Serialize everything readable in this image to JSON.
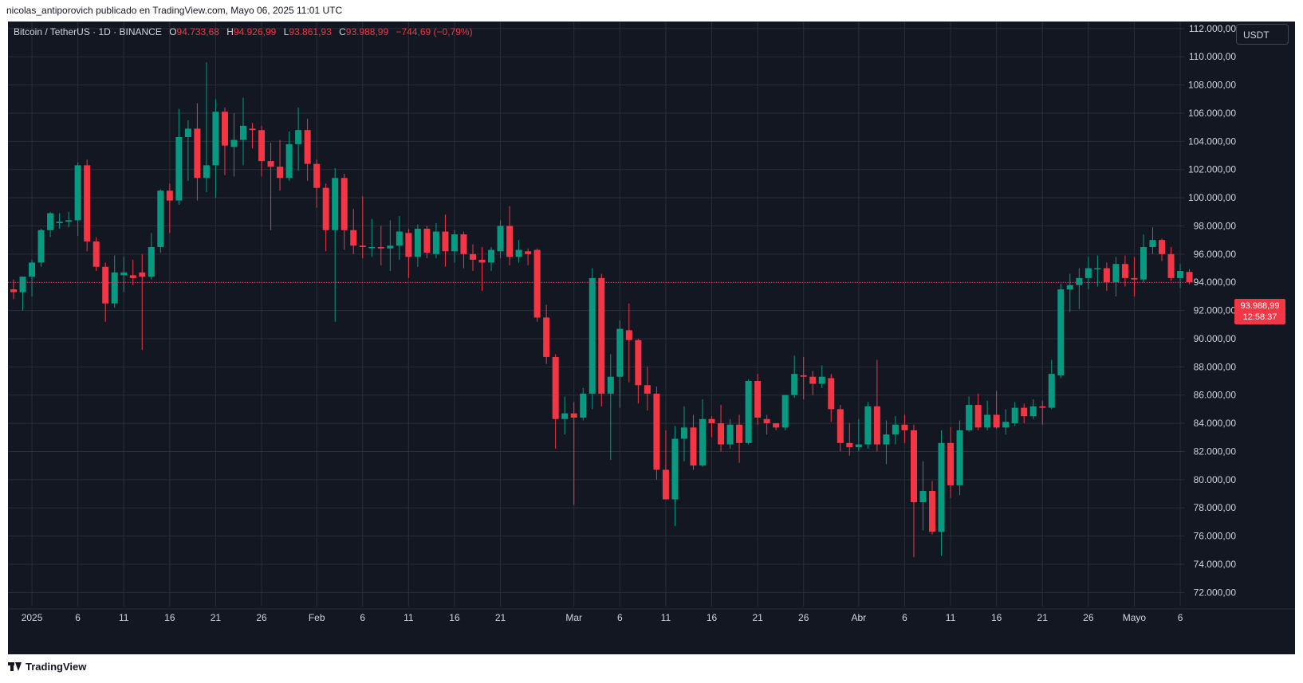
{
  "header": {
    "publisher_line": "nicolas_antiporovich publicado en TradingView.com, Mayo 06, 2025 11:01 UTC"
  },
  "legend": {
    "symbol": "Bitcoin / TetherUS · 1D · BINANCE",
    "o_label": "O",
    "o_value": "94.733,68",
    "h_label": "H",
    "h_value": "94.926,99",
    "l_label": "L",
    "l_value": "93.861,93",
    "c_label": "C",
    "c_value": "93.988,99",
    "change": "−744,69 (−0,79%)"
  },
  "currency_button": "USDT",
  "price_tag": {
    "price": "93.988,99",
    "countdown": "12:58:37"
  },
  "footer": {
    "brand": "TradingView"
  },
  "colors": {
    "up": "#089981",
    "down": "#f23645",
    "background": "#131722",
    "grid": "#2a2e39",
    "axis_text": "#d1d4dc"
  },
  "chart_data": {
    "type": "candlestick",
    "symbol": "BTCUSDT",
    "timeframe": "1D",
    "ylim": [
      71000,
      112500
    ],
    "grid": true,
    "y_ticks": [
      "112.000,00",
      "110.000,00",
      "108.000,00",
      "106.000,00",
      "104.000,00",
      "102.000,00",
      "100.000,00",
      "98.000,00",
      "96.000,00",
      "94.000,00",
      "92.000,00",
      "90.000,00",
      "88.000,00",
      "86.000,00",
      "84.000,00",
      "82.000,00",
      "80.000,00",
      "78.000,00",
      "76.000,00",
      "74.000,00",
      "72.000,00"
    ],
    "y_tick_values": [
      112000,
      110000,
      108000,
      106000,
      104000,
      102000,
      100000,
      98000,
      96000,
      94000,
      92000,
      90000,
      88000,
      86000,
      84000,
      82000,
      80000,
      78000,
      76000,
      74000,
      72000
    ],
    "x_ticks": [
      {
        "label": "2025",
        "index": 2
      },
      {
        "label": "6",
        "index": 7
      },
      {
        "label": "11",
        "index": 12
      },
      {
        "label": "16",
        "index": 17
      },
      {
        "label": "21",
        "index": 22
      },
      {
        "label": "26",
        "index": 27
      },
      {
        "label": "Feb",
        "index": 33
      },
      {
        "label": "6",
        "index": 38
      },
      {
        "label": "11",
        "index": 43
      },
      {
        "label": "16",
        "index": 48
      },
      {
        "label": "21",
        "index": 53
      },
      {
        "label": "Mar",
        "index": 61
      },
      {
        "label": "6",
        "index": 66
      },
      {
        "label": "11",
        "index": 71
      },
      {
        "label": "16",
        "index": 76
      },
      {
        "label": "21",
        "index": 81
      },
      {
        "label": "26",
        "index": 86
      },
      {
        "label": "Abr",
        "index": 92
      },
      {
        "label": "6",
        "index": 97
      },
      {
        "label": "11",
        "index": 102
      },
      {
        "label": "16",
        "index": 107
      },
      {
        "label": "21",
        "index": 112
      },
      {
        "label": "26",
        "index": 117
      },
      {
        "label": "Mayo",
        "index": 122
      },
      {
        "label": "6",
        "index": 127
      }
    ],
    "last_price": 93988.99,
    "ohlc": [
      [
        93500,
        94200,
        92800,
        93300
      ],
      [
        93300,
        94400,
        92000,
        94400
      ],
      [
        94400,
        95600,
        93000,
        95400
      ],
      [
        95400,
        97800,
        95100,
        97700
      ],
      [
        97700,
        99000,
        97200,
        98900
      ],
      [
        98200,
        98900,
        97800,
        98300
      ],
      [
        98300,
        99000,
        97900,
        98400
      ],
      [
        98400,
        102500,
        97300,
        102300
      ],
      [
        102300,
        102700,
        96200,
        96900
      ],
      [
        96900,
        97200,
        94800,
        95100
      ],
      [
        95100,
        95400,
        91200,
        92500
      ],
      [
        92500,
        95900,
        92200,
        94700
      ],
      [
        94500,
        95800,
        93300,
        94700
      ],
      [
        94500,
        95600,
        93800,
        94300
      ],
      [
        94700,
        96000,
        89200,
        94400
      ],
      [
        94400,
        97500,
        94200,
        96500
      ],
      [
        96500,
        100600,
        96100,
        100500
      ],
      [
        100500,
        101000,
        97500,
        99800
      ],
      [
        99800,
        106300,
        99500,
        104300
      ],
      [
        104300,
        105500,
        101200,
        104900
      ],
      [
        104900,
        106700,
        99800,
        101400
      ],
      [
        101400,
        109600,
        100400,
        102300
      ],
      [
        102300,
        107000,
        100000,
        106100
      ],
      [
        106100,
        106400,
        101600,
        103700
      ],
      [
        103600,
        106000,
        101500,
        104100
      ],
      [
        104100,
        107100,
        102300,
        105100
      ],
      [
        104900,
        105300,
        103500,
        104800
      ],
      [
        104800,
        105100,
        101500,
        102600
      ],
      [
        102600,
        103900,
        97700,
        102200
      ],
      [
        102200,
        104100,
        100500,
        101400
      ],
      [
        101400,
        104700,
        101200,
        103800
      ],
      [
        103800,
        106400,
        101900,
        104800
      ],
      [
        104800,
        105600,
        101200,
        102400
      ],
      [
        102400,
        102700,
        99300,
        100700
      ],
      [
        100700,
        101000,
        96200,
        97700
      ],
      [
        97700,
        102100,
        91200,
        101400
      ],
      [
        101400,
        101700,
        96300,
        97700
      ],
      [
        97700,
        99200,
        96000,
        96600
      ],
      [
        96600,
        100100,
        95700,
        96500
      ],
      [
        96500,
        98500,
        95800,
        96500
      ],
      [
        96500,
        98000,
        95200,
        96400
      ],
      [
        96400,
        98400,
        94800,
        96600
      ],
      [
        96600,
        98700,
        95600,
        97600
      ],
      [
        97500,
        97800,
        94300,
        95800
      ],
      [
        95800,
        98100,
        95100,
        97800
      ],
      [
        97800,
        98000,
        95700,
        96100
      ],
      [
        96000,
        98200,
        95700,
        97600
      ],
      [
        97600,
        98800,
        95100,
        96200
      ],
      [
        96200,
        97700,
        95400,
        97400
      ],
      [
        97400,
        97600,
        95000,
        96000
      ],
      [
        96000,
        96700,
        94800,
        95600
      ],
      [
        95600,
        96500,
        93400,
        95400
      ],
      [
        95400,
        96500,
        94800,
        96300
      ],
      [
        96200,
        98400,
        95700,
        98000
      ],
      [
        98000,
        99400,
        95200,
        95800
      ],
      [
        95800,
        97000,
        95400,
        96300
      ],
      [
        96200,
        96400,
        95200,
        96000
      ],
      [
        96300,
        96400,
        91200,
        91500
      ],
      [
        91500,
        92400,
        88200,
        88700
      ],
      [
        88700,
        88900,
        82200,
        84300
      ],
      [
        84300,
        85900,
        83200,
        84700
      ],
      [
        84700,
        85500,
        78200,
        84400
      ],
      [
        84400,
        86500,
        84200,
        86100
      ],
      [
        86100,
        95000,
        85000,
        94300
      ],
      [
        94300,
        94600,
        85200,
        86100
      ],
      [
        86100,
        88900,
        81400,
        87300
      ],
      [
        87300,
        91300,
        85100,
        90700
      ],
      [
        90600,
        92500,
        86900,
        89900
      ],
      [
        89900,
        90000,
        85400,
        86700
      ],
      [
        86700,
        88000,
        84900,
        86100
      ],
      [
        86100,
        86600,
        80000,
        80700
      ],
      [
        80700,
        83500,
        78800,
        78600
      ],
      [
        78600,
        83800,
        76700,
        82900
      ],
      [
        82900,
        85200,
        81300,
        83700
      ],
      [
        83700,
        84600,
        80700,
        81000
      ],
      [
        81000,
        85700,
        80900,
        84300
      ],
      [
        84300,
        84500,
        83000,
        84000
      ],
      [
        84000,
        85300,
        82000,
        82500
      ],
      [
        82500,
        84300,
        82200,
        83900
      ],
      [
        83900,
        84600,
        81200,
        82600
      ],
      [
        82600,
        87100,
        82500,
        87000
      ],
      [
        87000,
        87500,
        83900,
        84400
      ],
      [
        84300,
        84600,
        83200,
        84000
      ],
      [
        84000,
        84000,
        83500,
        83700
      ],
      [
        83700,
        86000,
        83500,
        86000
      ],
      [
        86000,
        88800,
        85800,
        87500
      ],
      [
        87400,
        88700,
        85700,
        87300
      ],
      [
        87300,
        87700,
        86000,
        86800
      ],
      [
        86800,
        88100,
        86500,
        87300
      ],
      [
        87200,
        87500,
        84100,
        85000
      ],
      [
        85000,
        85300,
        82000,
        82600
      ],
      [
        82600,
        84000,
        81700,
        82300
      ],
      [
        82300,
        84300,
        82000,
        82500
      ],
      [
        82500,
        85500,
        82200,
        85200
      ],
      [
        85200,
        88500,
        82000,
        82500
      ],
      [
        82500,
        84200,
        81100,
        83200
      ],
      [
        83200,
        84500,
        82500,
        83900
      ],
      [
        83900,
        84600,
        82600,
        83500
      ],
      [
        83500,
        83900,
        74500,
        78400
      ],
      [
        78400,
        81300,
        76400,
        79200
      ],
      [
        79200,
        79900,
        76100,
        76300
      ],
      [
        76300,
        83500,
        74600,
        82600
      ],
      [
        82600,
        83700,
        78700,
        79600
      ],
      [
        79600,
        84200,
        78900,
        83500
      ],
      [
        83500,
        85900,
        83400,
        85300
      ],
      [
        85300,
        86100,
        83500,
        83700
      ],
      [
        83700,
        85600,
        83500,
        84600
      ],
      [
        84600,
        86300,
        83600,
        83700
      ],
      [
        83700,
        85000,
        83200,
        84100
      ],
      [
        84000,
        85500,
        83800,
        85100
      ],
      [
        85100,
        85400,
        84000,
        84500
      ],
      [
        84500,
        85700,
        84300,
        85200
      ],
      [
        85200,
        85600,
        83900,
        85100
      ],
      [
        85100,
        88500,
        85000,
        87500
      ],
      [
        87400,
        93900,
        87200,
        93500
      ],
      [
        93500,
        94600,
        91900,
        93800
      ],
      [
        93800,
        95000,
        92100,
        94300
      ],
      [
        94300,
        95800,
        93500,
        95000
      ],
      [
        95000,
        95900,
        93700,
        95000
      ],
      [
        95000,
        95400,
        93400,
        94000
      ],
      [
        94000,
        95800,
        93000,
        95300
      ],
      [
        95300,
        95900,
        93700,
        94300
      ],
      [
        94300,
        95800,
        93000,
        94200
      ],
      [
        94200,
        97400,
        94000,
        96500
      ],
      [
        96500,
        97900,
        96000,
        97000
      ],
      [
        97000,
        97100,
        95500,
        96000
      ],
      [
        96000,
        96500,
        94100,
        94300
      ],
      [
        94300,
        95300,
        93600,
        94800
      ],
      [
        94733.68,
        94926.99,
        93861.93,
        93988.99
      ]
    ]
  }
}
